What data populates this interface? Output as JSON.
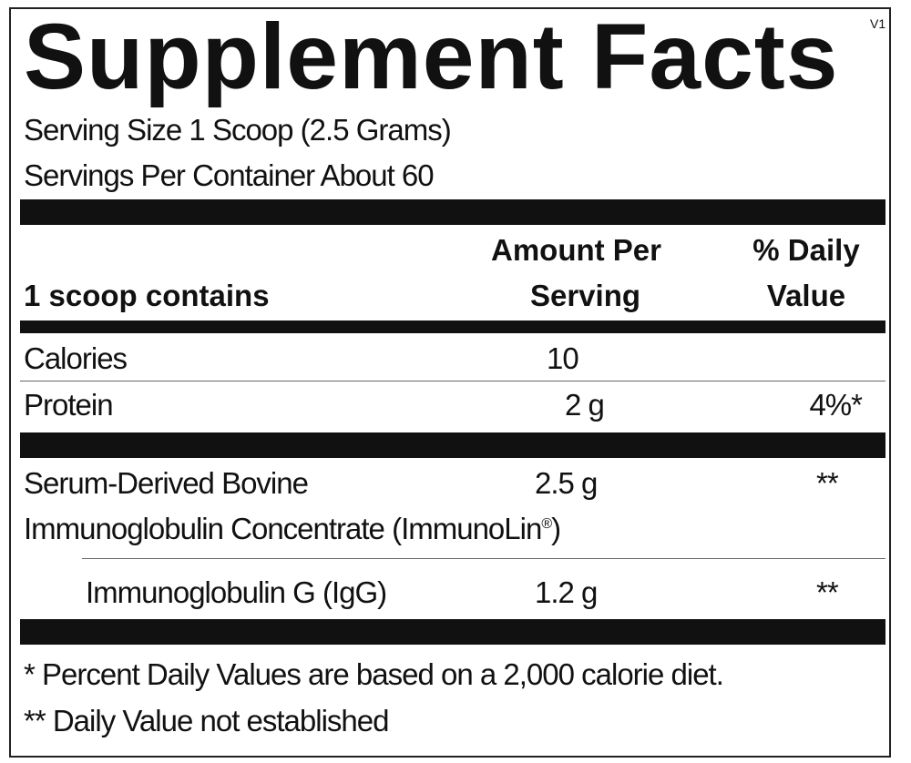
{
  "title": "Supplement Facts",
  "version": "V1",
  "serving_size": "Serving Size 1 Scoop (2.5 Grams)",
  "servings_per_container": "Servings Per Container About 60",
  "header": {
    "col1": "1 scoop contains",
    "col2_line1": "Amount Per",
    "col2_line2": "Serving",
    "col3_line1": "% Daily",
    "col3_line2": "Value"
  },
  "rows": [
    {
      "name": "Calories",
      "amount": "10",
      "dv": ""
    },
    {
      "name": "Protein",
      "amount": "2 g",
      "dv": "4%*"
    }
  ],
  "ingredients": [
    {
      "name_line1": "Serum-Derived Bovine",
      "name_line2": "Immunoglobulin Concentrate (ImmunoLin",
      "trademark": "®",
      "name_suffix": ")",
      "amount": "2.5 g",
      "dv": "**"
    },
    {
      "name": "Immunoglobulin G (IgG)",
      "amount": "1.2 g",
      "dv": "**"
    }
  ],
  "footnotes": [
    "* Percent Daily Values are based on a 2,000 calorie diet.",
    "** Daily Value not established"
  ]
}
